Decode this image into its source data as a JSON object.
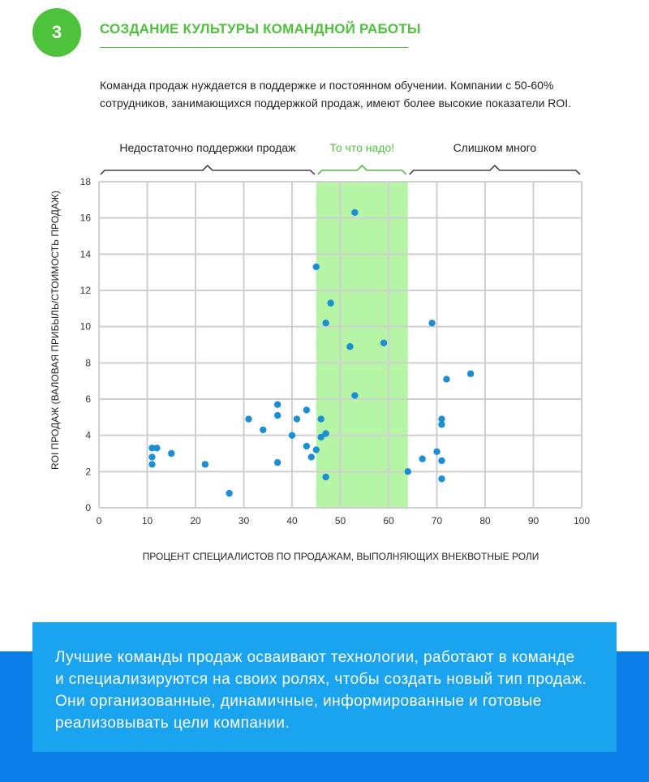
{
  "header": {
    "badge_number": "3",
    "section_title": "СОЗДАНИЕ КУЛЬТУРЫ КОМАНДНОЙ РАБОТЫ",
    "intro_line1": "Команда продаж нуждается в поддержке и постоянном обучении. Компании с 50-60%",
    "intro_line2": "сотрудников, занимающихся поддержкой продаж, имеют более высокие показатели ROI."
  },
  "colors": {
    "accent_green": "#4cc33a",
    "band_green": "#b6f5a6",
    "point_blue": "#1a8fd4",
    "callout_blue": "#1aa3ef",
    "bottom_blue": "#0a7ee6"
  },
  "chart_data": {
    "type": "scatter",
    "title": "",
    "xlabel": "ПРОЦЕНТ СПЕЦИАЛИСТОВ ПО ПРОДАЖАМ, ВЫПОЛНЯЮЩИХ ВНЕКВОТНЫЕ РОЛИ",
    "ylabel": "ROI ПРОДАЖ (ВАЛОВАЯ ПРИБЫЛЬ/СТОИМОСТЬ ПРОДАЖ)",
    "xlim": [
      0,
      100
    ],
    "ylim": [
      0,
      18
    ],
    "x_ticks": [
      0,
      10,
      20,
      30,
      40,
      50,
      60,
      70,
      80,
      90,
      100
    ],
    "y_ticks": [
      0,
      2,
      4,
      6,
      8,
      10,
      12,
      14,
      16,
      18
    ],
    "grid": true,
    "highlight_band": [
      45,
      64
    ],
    "regions": [
      {
        "label": "Недостаточно поддержки продаж",
        "from": 0,
        "to": 45,
        "style": "normal"
      },
      {
        "label": "То что надо!",
        "from": 45,
        "to": 64,
        "style": "highlight"
      },
      {
        "label": "Слишком много",
        "from": 64,
        "to": 100,
        "style": "normal"
      }
    ],
    "points": [
      {
        "x": 11,
        "y": 3.3
      },
      {
        "x": 12,
        "y": 3.3
      },
      {
        "x": 11,
        "y": 2.8
      },
      {
        "x": 11,
        "y": 2.4
      },
      {
        "x": 15,
        "y": 3.0
      },
      {
        "x": 22,
        "y": 2.4
      },
      {
        "x": 27,
        "y": 0.8
      },
      {
        "x": 31,
        "y": 4.9
      },
      {
        "x": 34,
        "y": 4.3
      },
      {
        "x": 37,
        "y": 5.7
      },
      {
        "x": 37,
        "y": 5.1
      },
      {
        "x": 37,
        "y": 2.5
      },
      {
        "x": 40,
        "y": 4.0
      },
      {
        "x": 41,
        "y": 4.9
      },
      {
        "x": 43,
        "y": 5.4
      },
      {
        "x": 43,
        "y": 3.4
      },
      {
        "x": 44,
        "y": 2.8
      },
      {
        "x": 45,
        "y": 13.3
      },
      {
        "x": 45,
        "y": 3.2
      },
      {
        "x": 46,
        "y": 4.9
      },
      {
        "x": 46,
        "y": 3.9
      },
      {
        "x": 47,
        "y": 4.1
      },
      {
        "x": 47,
        "y": 10.2
      },
      {
        "x": 47,
        "y": 1.7
      },
      {
        "x": 48,
        "y": 11.3
      },
      {
        "x": 52,
        "y": 8.9
      },
      {
        "x": 53,
        "y": 16.3
      },
      {
        "x": 53,
        "y": 6.2
      },
      {
        "x": 59,
        "y": 9.1
      },
      {
        "x": 64,
        "y": 2.0
      },
      {
        "x": 67,
        "y": 2.7
      },
      {
        "x": 69,
        "y": 10.2
      },
      {
        "x": 70,
        "y": 3.1
      },
      {
        "x": 71,
        "y": 4.9
      },
      {
        "x": 71,
        "y": 4.6
      },
      {
        "x": 71,
        "y": 2.6
      },
      {
        "x": 71,
        "y": 1.6
      },
      {
        "x": 72,
        "y": 7.1
      },
      {
        "x": 77,
        "y": 7.4
      }
    ]
  },
  "callout": {
    "line1": "Лучшие команды продаж осваивают технологии, работают в команде",
    "line2": "и специализируются на своих ролях, чтобы создать новый тип продаж.",
    "line3": "Они организованные, динамичные, информированные и готовые",
    "line4": "реализовывать цели компании."
  }
}
